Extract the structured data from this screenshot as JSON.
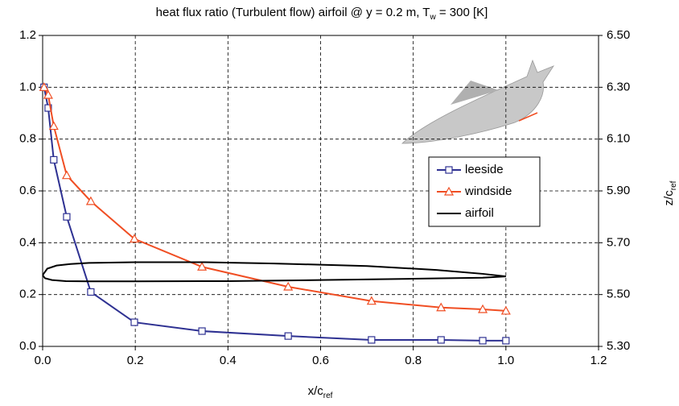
{
  "chart_data": {
    "type": "line",
    "title": {
      "text": "heat flux ratio (Turbulent flow) airfoil @ y = 0.2 m, T",
      "subscript": "w",
      "suffix": " = 300 [K]"
    },
    "x_label": {
      "text": "x/c",
      "subscript": "ref"
    },
    "y2_label": {
      "text": "z/c",
      "subscript": "ref"
    },
    "xlim": [
      0,
      1.2
    ],
    "xticks": [
      {
        "value": 0,
        "label": "0.0"
      },
      {
        "value": 0.2,
        "label": "0.2"
      },
      {
        "value": 0.4,
        "label": "0.4"
      },
      {
        "value": 0.6,
        "label": "0.6"
      },
      {
        "value": 0.8,
        "label": "0.8"
      },
      {
        "value": 1.0,
        "label": "1.0"
      },
      {
        "value": 1.2,
        "label": "1.2"
      }
    ],
    "ylim": [
      0,
      1.2
    ],
    "yticks": [
      {
        "value": 0,
        "label": "0.0"
      },
      {
        "value": 0.2,
        "label": "0.2"
      },
      {
        "value": 0.4,
        "label": "0.4"
      },
      {
        "value": 0.6,
        "label": "0.6"
      },
      {
        "value": 0.8,
        "label": "0.8"
      },
      {
        "value": 1.0,
        "label": "1.0"
      },
      {
        "value": 1.2,
        "label": "1.2"
      }
    ],
    "y2lim": [
      5.3,
      6.5
    ],
    "y2ticks": [
      {
        "value": 5.3,
        "label": "5.30"
      },
      {
        "value": 5.5,
        "label": "5.50"
      },
      {
        "value": 5.7,
        "label": "5.70"
      },
      {
        "value": 5.9,
        "label": "5.90"
      },
      {
        "value": 6.1,
        "label": "6.10"
      },
      {
        "value": 6.3,
        "label": "6.30"
      },
      {
        "value": 6.5,
        "label": "6.50"
      }
    ],
    "grid": true,
    "series": [
      {
        "name": "leeside",
        "color": "#2e3192",
        "marker": "square",
        "x": [
          0.003,
          0.012,
          0.024,
          0.052,
          0.104,
          0.198,
          0.344,
          0.53,
          0.71,
          0.86,
          0.95,
          1.0
        ],
        "values": [
          1.0,
          0.92,
          0.72,
          0.5,
          0.21,
          0.093,
          0.059,
          0.04,
          0.025,
          0.025,
          0.022,
          0.022
        ]
      },
      {
        "name": "windside",
        "color": "#f04e23",
        "marker": "triangle",
        "x": [
          0.003,
          0.012,
          0.024,
          0.052,
          0.104,
          0.198,
          0.344,
          0.53,
          0.71,
          0.86,
          0.95,
          1.0
        ],
        "values": [
          1.0,
          0.97,
          0.85,
          0.66,
          0.56,
          0.415,
          0.307,
          0.23,
          0.175,
          0.15,
          0.143,
          0.137
        ]
      },
      {
        "name": "airfoil",
        "color": "#000000",
        "axis": "y2",
        "x": [
          0,
          0.01,
          0.03,
          0.06,
          0.1,
          0.2,
          0.35,
          0.5,
          0.7,
          0.85,
          0.95,
          1.0,
          0.95,
          0.8,
          0.6,
          0.4,
          0.2,
          0.1,
          0.05,
          0.02,
          0.005,
          0
        ],
        "values": [
          5.575,
          5.6,
          5.612,
          5.618,
          5.622,
          5.625,
          5.625,
          5.62,
          5.61,
          5.595,
          5.58,
          5.57,
          5.565,
          5.561,
          5.556,
          5.552,
          5.551,
          5.551,
          5.552,
          5.556,
          5.563,
          5.575
        ]
      }
    ]
  }
}
